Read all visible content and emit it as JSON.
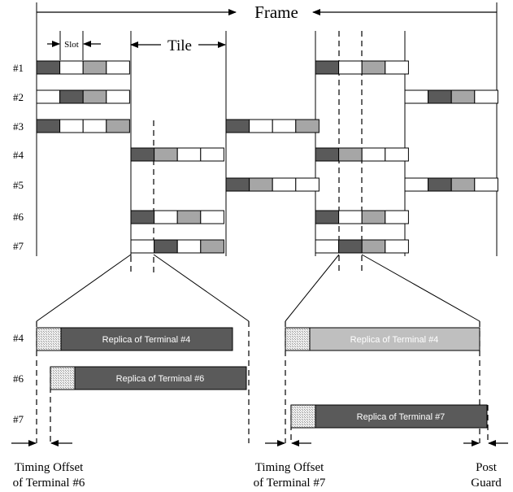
{
  "header": {
    "frame_label": "Frame",
    "tile_label": "Tile",
    "slot_label": "Slot"
  },
  "terminal_rows": [
    "#1",
    "#2",
    "#3",
    "#4",
    "#5",
    "#6",
    "#7"
  ],
  "replica_rows": [
    "#4",
    "#6",
    "#7"
  ],
  "replicas": {
    "left_t4": "Replica of Terminal #4",
    "left_t6": "Replica of Terminal #6",
    "right_t4": "Replica of Terminal #4",
    "right_t7": "Replica of Terminal #7"
  },
  "annotations": {
    "timing_offset_6_line1": "Timing Offset",
    "timing_offset_6_line2": "of Terminal #6",
    "timing_offset_7_line1": "Timing Offset",
    "timing_offset_7_line2": "of Terminal #7",
    "post_guard_line1": "Post",
    "post_guard_line2": "Guard"
  },
  "colors": {
    "dark": "#5a5a5a",
    "gray": "#a6a6a6",
    "light_replica": "#bfbfbf",
    "white": "#ffffff",
    "line": "#000000"
  }
}
